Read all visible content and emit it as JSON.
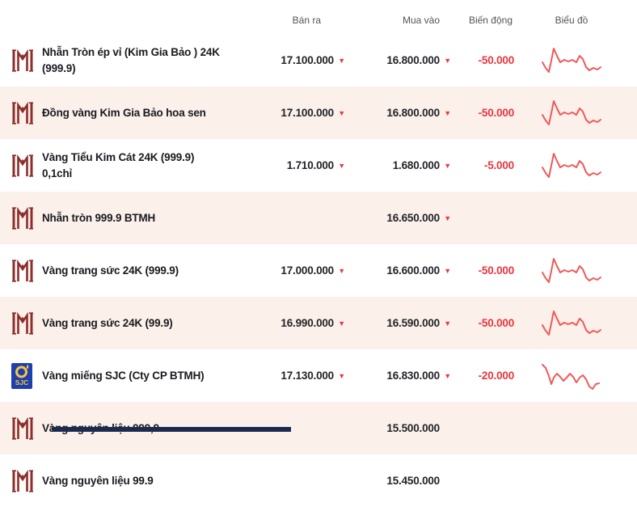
{
  "header": {
    "columns": [
      "Bán ra",
      "Mua vào",
      "Biến động",
      "Biểu đồ"
    ]
  },
  "icons": {
    "down_arrow": "▼",
    "btmh_logo": "btmh-monogram",
    "sjc_logo": "sjc-badge"
  },
  "colors": {
    "row_alt_bg": "#fbf1ea",
    "text_dark": "#1a1a21",
    "change_red": "#e8353f",
    "arrow_red": "#f0353e",
    "spark_red": "#ee5a5a",
    "btmh_maroon": "#8c2e2c",
    "sjc_blue": "#1e3fae",
    "sjc_yellow": "#f4c63f",
    "bottom_bar_navy": "#1d2a50"
  },
  "chart_data": {
    "type": "line",
    "note": "red sparklines in Biểu đồ column, no axes",
    "series_points": {
      "A": "2,22 6,29 10,34 13,20 16,5 20,14 24,22 29,19 34,21 39,19 44,22 48,14 52,18 56,28 60,32 65,29 70,31 74,28",
      "B": "2,6 6,10 10,20 13,30 16,22 20,17 24,21 28,26 32,22 36,17 40,21 44,28 48,22 52,19 56,24 60,33 64,36 68,30 72,29"
    }
  },
  "rows": [
    {
      "icon": "btmh",
      "name": "Nhẫn Tròn ép vỉ (Kim Gia Bảo ) 24K (999.9)",
      "sell": "17.100.000",
      "sell_dir": "down",
      "buy": "16.800.000",
      "buy_dir": "down",
      "change": "-50.000",
      "spark": "A"
    },
    {
      "icon": "btmh",
      "name": "Đồng vàng Kim Gia Bảo hoa sen",
      "sell": "17.100.000",
      "sell_dir": "down",
      "buy": "16.800.000",
      "buy_dir": "down",
      "change": "-50.000",
      "spark": "A"
    },
    {
      "icon": "btmh",
      "name": "Vàng Tiểu Kim Cát 24K (999.9) 0,1chỉ",
      "sell": "1.710.000",
      "sell_dir": "down",
      "buy": "1.680.000",
      "buy_dir": "down",
      "change": "-5.000",
      "spark": "A"
    },
    {
      "icon": "btmh",
      "name": "Nhẫn tròn 999.9 BTMH",
      "sell": "",
      "sell_dir": "",
      "buy": "16.650.000",
      "buy_dir": "down",
      "change": "",
      "spark": ""
    },
    {
      "icon": "btmh",
      "name": "Vàng trang sức 24K (999.9)",
      "sell": "17.000.000",
      "sell_dir": "down",
      "buy": "16.600.000",
      "buy_dir": "down",
      "change": "-50.000",
      "spark": "A"
    },
    {
      "icon": "btmh",
      "name": "Vàng trang sức 24K (99.9)",
      "sell": "16.990.000",
      "sell_dir": "down",
      "buy": "16.590.000",
      "buy_dir": "down",
      "change": "-50.000",
      "spark": "A"
    },
    {
      "icon": "sjc",
      "name": "Vàng miếng SJC (Cty CP BTMH)",
      "sell": "17.130.000",
      "sell_dir": "down",
      "buy": "16.830.000",
      "buy_dir": "down",
      "change": "-20.000",
      "spark": "B"
    },
    {
      "icon": "btmh",
      "name": "Vàng nguyên liệu 999,9",
      "sell": "",
      "sell_dir": "",
      "buy": "15.500.000",
      "buy_dir": "",
      "change": "",
      "spark": ""
    },
    {
      "icon": "btmh",
      "name": "Vàng nguyên liệu 99.9",
      "sell": "",
      "sell_dir": "",
      "buy": "15.450.000",
      "buy_dir": "",
      "change": "",
      "spark": ""
    }
  ]
}
